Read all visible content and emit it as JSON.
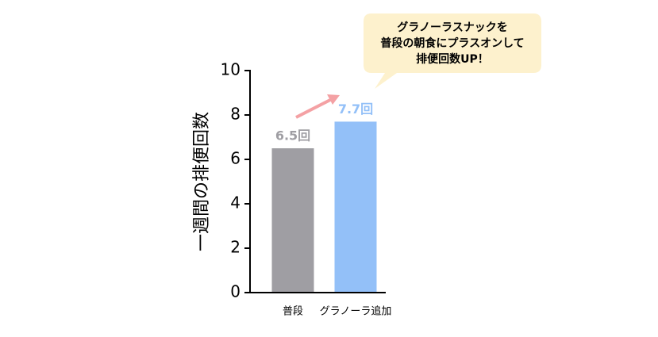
{
  "chart_data": {
    "type": "bar",
    "ylabel": "一週間の排便回数",
    "categories": [
      "普段",
      "グラノーラ追加"
    ],
    "values": [
      6.5,
      7.7
    ],
    "value_labels": [
      "6.5回",
      "7.7回"
    ],
    "colors": [
      "#9f9ea3",
      "#93c0f8"
    ],
    "ylim": [
      0,
      10
    ],
    "yticks": [
      0,
      2,
      4,
      6,
      8,
      10
    ],
    "annotation": [
      "グラノーラスナックを",
      "普段の朝食にプラスオンして",
      "排便回数UP！"
    ]
  }
}
